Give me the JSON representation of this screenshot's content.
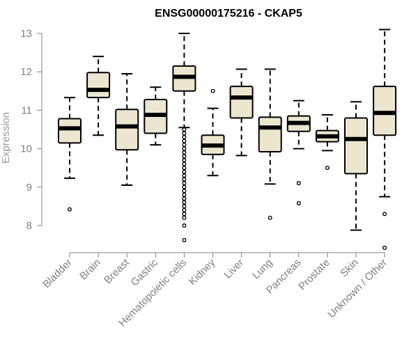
{
  "chart_data": {
    "type": "boxplot",
    "title": "ENSG00000175216 - CKAP5",
    "ylabel": "Expression",
    "xlabel": "",
    "ylim": [
      7.4,
      13.2
    ],
    "yticks": [
      8,
      9,
      10,
      11,
      12,
      13
    ],
    "grid": false,
    "box_fill": "#ece6cf",
    "categories": [
      "Bladder",
      "Brain",
      "Breast",
      "Gastric",
      "Hematopoietic cells",
      "Kidney",
      "Liver",
      "Lung",
      "Pancreas",
      "Prostate",
      "Skin",
      "Unknown / Other"
    ],
    "boxes": [
      {
        "whisker_low": 9.23,
        "q1": 10.15,
        "median": 10.53,
        "q3": 10.78,
        "whisker_high": 11.33,
        "outliers": [
          8.42
        ]
      },
      {
        "whisker_low": 10.35,
        "q1": 11.33,
        "median": 11.53,
        "q3": 11.98,
        "whisker_high": 12.4,
        "outliers": []
      },
      {
        "whisker_low": 9.05,
        "q1": 9.97,
        "median": 10.58,
        "q3": 11.02,
        "whisker_high": 11.95,
        "outliers": []
      },
      {
        "whisker_low": 10.1,
        "q1": 10.4,
        "median": 10.88,
        "q3": 11.28,
        "whisker_high": 11.6,
        "outliers": []
      },
      {
        "whisker_low": 10.55,
        "q1": 11.5,
        "median": 11.87,
        "q3": 12.15,
        "whisker_high": 13.0,
        "outliers": [
          10.5,
          10.4,
          10.3,
          10.2,
          10.1,
          10.0,
          9.9,
          9.8,
          9.7,
          9.6,
          9.5,
          9.4,
          9.3,
          9.2,
          9.1,
          9.0,
          8.9,
          8.8,
          8.7,
          8.6,
          8.5,
          8.4,
          8.3,
          8.2,
          8.0,
          7.62
        ]
      },
      {
        "whisker_low": 9.3,
        "q1": 9.85,
        "median": 10.08,
        "q3": 10.35,
        "whisker_high": 11.05,
        "outliers": [
          11.5
        ]
      },
      {
        "whisker_low": 9.82,
        "q1": 10.8,
        "median": 11.33,
        "q3": 11.62,
        "whisker_high": 12.07,
        "outliers": []
      },
      {
        "whisker_low": 9.08,
        "q1": 9.92,
        "median": 10.55,
        "q3": 10.82,
        "whisker_high": 12.07,
        "outliers": [
          8.2
        ]
      },
      {
        "whisker_low": 10.0,
        "q1": 10.45,
        "median": 10.67,
        "q3": 10.85,
        "whisker_high": 11.25,
        "outliers": [
          9.1,
          8.58
        ]
      },
      {
        "whisker_low": 9.95,
        "q1": 10.18,
        "median": 10.32,
        "q3": 10.47,
        "whisker_high": 10.88,
        "outliers": [
          9.5
        ]
      },
      {
        "whisker_low": 7.88,
        "q1": 9.35,
        "median": 10.25,
        "q3": 10.8,
        "whisker_high": 11.22,
        "outliers": []
      },
      {
        "whisker_low": 8.75,
        "q1": 10.35,
        "median": 10.93,
        "q3": 11.62,
        "whisker_high": 13.1,
        "outliers": [
          8.3,
          7.42
        ]
      }
    ]
  }
}
